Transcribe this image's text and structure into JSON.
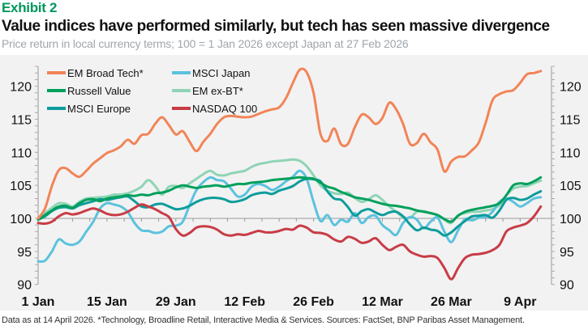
{
  "header": {
    "exhibit": "Exhibit 2",
    "title": "Value indices have performed similarly, but tech has seen massive divergence",
    "subtitle": "Price return in local currency terms; 100 = 1 Jan 2026 except Japan at 27 Feb 2026"
  },
  "footer": "Data as at 14 April 2026. *Technology, Broadline Retail, Interactive Media & Services. Sources: FactSet, BNP Paribas Asset Management.",
  "chart_data": {
    "type": "line",
    "title": "Value indices have performed similarly, but tech has seen massive divergence",
    "subtitle": "Price return in local currency terms; 100 = 1 Jan 2026 except Japan at 27 Feb 2026",
    "xlabel": "",
    "ylabel": "",
    "x_unit": "trading days since 1 Jan 2026",
    "x_range": [
      0,
      73
    ],
    "x_ticks": [
      {
        "x": 0,
        "label": "1 Jan"
      },
      {
        "x": 10,
        "label": "15 Jan"
      },
      {
        "x": 20,
        "label": "29 Jan"
      },
      {
        "x": 30,
        "label": "12 Feb"
      },
      {
        "x": 40,
        "label": "26 Feb"
      },
      {
        "x": 50,
        "label": "12 Mar"
      },
      {
        "x": 60,
        "label": "26 Mar"
      },
      {
        "x": 70,
        "label": "9 Apr"
      }
    ],
    "ylim": [
      90,
      123
    ],
    "y_ticks": [
      90,
      95,
      100,
      105,
      110,
      115,
      120
    ],
    "y_axes": "left-and-right",
    "baseline": 100,
    "grid": false,
    "legend_position": "top-left",
    "series": [
      {
        "name": "EM Broad Tech*",
        "color": "#f28457",
        "x": [
          0,
          1,
          2,
          3,
          4,
          5,
          6,
          7,
          8,
          9,
          10,
          11,
          12,
          13,
          14,
          15,
          16,
          17,
          18,
          19,
          20,
          21,
          22,
          23,
          24,
          25,
          26,
          27,
          28,
          29,
          30,
          31,
          32,
          33,
          34,
          35,
          36,
          37,
          38,
          39,
          40,
          41,
          42,
          43,
          44,
          45,
          46,
          47,
          48,
          49,
          50,
          51,
          52,
          53,
          54,
          55,
          56,
          57,
          58,
          59,
          60,
          61,
          62,
          63,
          64,
          65,
          66,
          67,
          68,
          69,
          70,
          71,
          72,
          73
        ],
        "values": [
          100,
          101.5,
          104.9,
          107.3,
          107.6,
          106.8,
          106.3,
          107.2,
          108.3,
          109.1,
          109.9,
          110.3,
          110.9,
          111.9,
          111.3,
          112.6,
          112.8,
          114.3,
          115.3,
          114.1,
          112.7,
          113.2,
          111.6,
          110.2,
          111.6,
          112.8,
          114.3,
          115.3,
          115.5,
          115.4,
          115.3,
          115.4,
          115.8,
          116.2,
          116.5,
          116.8,
          118.2,
          120.5,
          122.5,
          122.1,
          119,
          112.8,
          111.7,
          113.6,
          111.2,
          111.3,
          113.8,
          115.7,
          115.3,
          114.3,
          115.2,
          117.5,
          116.5,
          114.3,
          111.3,
          111.4,
          112.8,
          111.5,
          110.4,
          107.1,
          108.6,
          109.3,
          109.4,
          110.3,
          111.5,
          114.5,
          117.9,
          118.8,
          119.2,
          119.4,
          120.5,
          121.8,
          122,
          122.3
        ]
      },
      {
        "name": "MSCI Japan",
        "color": "#5bc2dd",
        "x": [
          0,
          1,
          2,
          3,
          4,
          5,
          6,
          7,
          8,
          9,
          10,
          11,
          12,
          13,
          14,
          15,
          16,
          17,
          18,
          19,
          20,
          21,
          22,
          23,
          24,
          25,
          26,
          27,
          28,
          29,
          30,
          31,
          32,
          33,
          34,
          35,
          36,
          37,
          38,
          39,
          40,
          41,
          42,
          43,
          44,
          45,
          46,
          47,
          48,
          49,
          50,
          51,
          52,
          53,
          54,
          55,
          56,
          57,
          58,
          59,
          60,
          61,
          62,
          63,
          64,
          65,
          66,
          67,
          68,
          69,
          70,
          71,
          72,
          73
        ],
        "values": [
          93.5,
          93.6,
          95,
          96.8,
          96.2,
          96,
          96.5,
          98,
          99.5,
          101.5,
          102.3,
          102.1,
          101.8,
          101,
          99.3,
          98.2,
          98.1,
          97.8,
          98,
          98.8,
          98.9,
          99.5,
          102,
          104.3,
          105.5,
          106.2,
          105.8,
          105.6,
          104.5,
          103.3,
          103.6,
          104.8,
          105.2,
          104.9,
          104.3,
          104.8,
          105.6,
          106.3,
          107.2,
          106,
          102.5,
          99.6,
          100.5,
          99,
          99.8,
          99.5,
          100.8,
          99.3,
          100.2,
          100.4,
          99,
          98.2,
          97.5,
          99.3,
          100.2,
          99.8,
          98.5,
          99.5,
          100.1,
          98,
          96.4,
          98.2,
          99.9,
          99.7,
          100.1,
          100.2,
          101,
          102.5,
          103,
          102.5,
          101.8,
          102.3,
          103,
          103.2
        ]
      },
      {
        "name": "Russell Value",
        "color": "#00a05c",
        "x": [
          0,
          1,
          2,
          3,
          4,
          5,
          6,
          7,
          8,
          9,
          10,
          11,
          12,
          13,
          14,
          15,
          16,
          17,
          18,
          19,
          20,
          21,
          22,
          23,
          24,
          25,
          26,
          27,
          28,
          29,
          30,
          31,
          32,
          33,
          34,
          35,
          36,
          37,
          38,
          39,
          40,
          41,
          42,
          43,
          44,
          45,
          46,
          47,
          48,
          49,
          50,
          51,
          52,
          53,
          54,
          55,
          56,
          57,
          58,
          59,
          60,
          61,
          62,
          63,
          64,
          65,
          66,
          67,
          68,
          69,
          70,
          71,
          72,
          73
        ],
        "values": [
          99.8,
          100.5,
          101.2,
          101.8,
          101.9,
          101.6,
          102.3,
          102.8,
          102.9,
          102.6,
          103,
          103.2,
          103.3,
          103.5,
          103.4,
          103.6,
          103.5,
          103.8,
          103.9,
          104.2,
          104.7,
          105,
          104.8,
          104.6,
          104.8,
          104.9,
          105,
          104.8,
          105,
          105.2,
          105.2,
          105.4,
          105.5,
          105.6,
          105.8,
          105.9,
          106,
          106.1,
          106.2,
          106.1,
          106,
          105.4,
          104.8,
          104.5,
          104,
          103.6,
          103.2,
          103,
          102.8,
          102.5,
          102.2,
          102,
          101.9,
          101.7,
          101.5,
          101.2,
          101,
          100.8,
          100.5,
          99.9,
          99.5,
          100.4,
          101,
          101.3,
          101.5,
          101.7,
          101.9,
          102.3,
          103.5,
          105,
          105.3,
          105.2,
          105.6,
          106.2
        ]
      },
      {
        "name": "EM ex-BT*",
        "color": "#8fd4b5",
        "x": [
          0,
          1,
          2,
          3,
          4,
          5,
          6,
          7,
          8,
          9,
          10,
          11,
          12,
          13,
          14,
          15,
          16,
          17,
          18,
          19,
          20,
          21,
          22,
          23,
          24,
          25,
          26,
          27,
          28,
          29,
          30,
          31,
          32,
          33,
          34,
          35,
          36,
          37,
          38,
          39,
          40,
          41,
          42,
          43,
          44,
          45,
          46,
          47,
          48,
          49,
          50,
          51,
          52,
          53,
          54,
          55,
          56,
          57,
          58,
          59,
          60,
          61,
          62,
          63,
          64,
          65,
          66,
          67,
          68,
          69,
          70,
          71,
          72,
          73
        ],
        "values": [
          99.8,
          100.8,
          101.6,
          102.3,
          102.2,
          101.8,
          102.5,
          103,
          103.1,
          103.2,
          103.3,
          103.6,
          103.6,
          103.8,
          104.2,
          104.8,
          105.8,
          104.9,
          103.6,
          104.8,
          104.9,
          104.6,
          105.3,
          106,
          106.7,
          107.2,
          106.6,
          106.5,
          106.8,
          107,
          107.2,
          107.8,
          108.2,
          108.4,
          108.6,
          108.7,
          108.8,
          108.9,
          108.7,
          107.9,
          106.5,
          105,
          104.2,
          103.8,
          103.7,
          103.9,
          103.1,
          102.5,
          102.9,
          103.5,
          102.8,
          101.8,
          101,
          100.2,
          100.1,
          101,
          101.1,
          100.8,
          100.5,
          99.8,
          99.3,
          100.5,
          100.8,
          101,
          101,
          101.2,
          101.4,
          102,
          103.5,
          104.5,
          104.8,
          104.9,
          105.3,
          105.7
        ]
      },
      {
        "name": "MSCI Europe",
        "color": "#0e9c9c",
        "x": [
          0,
          1,
          2,
          3,
          4,
          5,
          6,
          7,
          8,
          9,
          10,
          11,
          12,
          13,
          14,
          15,
          16,
          17,
          18,
          19,
          20,
          21,
          22,
          23,
          24,
          25,
          26,
          27,
          28,
          29,
          30,
          31,
          32,
          33,
          34,
          35,
          36,
          37,
          38,
          39,
          40,
          41,
          42,
          43,
          44,
          45,
          46,
          47,
          48,
          49,
          50,
          51,
          52,
          53,
          54,
          55,
          56,
          57,
          58,
          59,
          60,
          61,
          62,
          63,
          64,
          65,
          66,
          67,
          68,
          69,
          70,
          71,
          72,
          73
        ],
        "values": [
          99.8,
          100.3,
          101.1,
          101.6,
          101.7,
          101.5,
          102,
          102.3,
          102.6,
          102.9,
          102.8,
          103,
          103.2,
          103.3,
          102.6,
          101.8,
          101.7,
          102.1,
          102.2,
          101.8,
          101.4,
          101.5,
          101.9,
          102.5,
          102.9,
          103.1,
          103.1,
          102.9,
          102.5,
          102.6,
          102.9,
          103.5,
          103.8,
          103.9,
          103.7,
          104.2,
          104.5,
          104.9,
          105.6,
          106,
          105.9,
          105.6,
          104.1,
          103,
          102.8,
          101.7,
          100.4,
          101.1,
          101.4,
          100.9,
          100.5,
          100.9,
          101,
          100.3,
          99.1,
          98.2,
          98.6,
          98.3,
          98.1,
          97.4,
          97.9,
          98.8,
          99.6,
          100.3,
          100.4,
          100.5,
          100.1,
          101.2,
          102.8,
          103.1,
          102.8,
          103,
          103.6,
          104.1
        ]
      },
      {
        "name": "NASDAQ 100",
        "color": "#c83c46",
        "x": [
          0,
          1,
          2,
          3,
          4,
          5,
          6,
          7,
          8,
          9,
          10,
          11,
          12,
          13,
          14,
          15,
          16,
          17,
          18,
          19,
          20,
          21,
          22,
          23,
          24,
          25,
          26,
          27,
          28,
          29,
          30,
          31,
          32,
          33,
          34,
          35,
          36,
          37,
          38,
          39,
          40,
          41,
          42,
          43,
          44,
          45,
          46,
          47,
          48,
          49,
          50,
          51,
          52,
          53,
          54,
          55,
          56,
          57,
          58,
          59,
          60,
          61,
          62,
          63,
          64,
          65,
          66,
          67,
          68,
          69,
          70,
          71,
          72,
          73
        ],
        "values": [
          99.3,
          99.2,
          99.5,
          100.3,
          100.8,
          100.6,
          100.8,
          101.2,
          101.5,
          101.2,
          100.7,
          100.5,
          100.6,
          101,
          101.6,
          102.1,
          101.8,
          101.4,
          100.8,
          100.2,
          98.4,
          97.4,
          97.8,
          98.6,
          98.8,
          98.7,
          98.3,
          97.6,
          97.4,
          97.6,
          97.5,
          97.8,
          98.1,
          97.9,
          97.9,
          98.1,
          98.4,
          98.3,
          98.9,
          98.6,
          97.9,
          97.8,
          97.5,
          96.8,
          96.5,
          97.2,
          96.9,
          96.3,
          96.5,
          97,
          96,
          95.2,
          95.7,
          96,
          95,
          94.5,
          94.2,
          94.3,
          94,
          92.5,
          90.8,
          92.5,
          94,
          94.5,
          94.6,
          94.8,
          95.2,
          96,
          98,
          98.6,
          98.9,
          99.3,
          100.3,
          101.8
        ]
      }
    ]
  }
}
